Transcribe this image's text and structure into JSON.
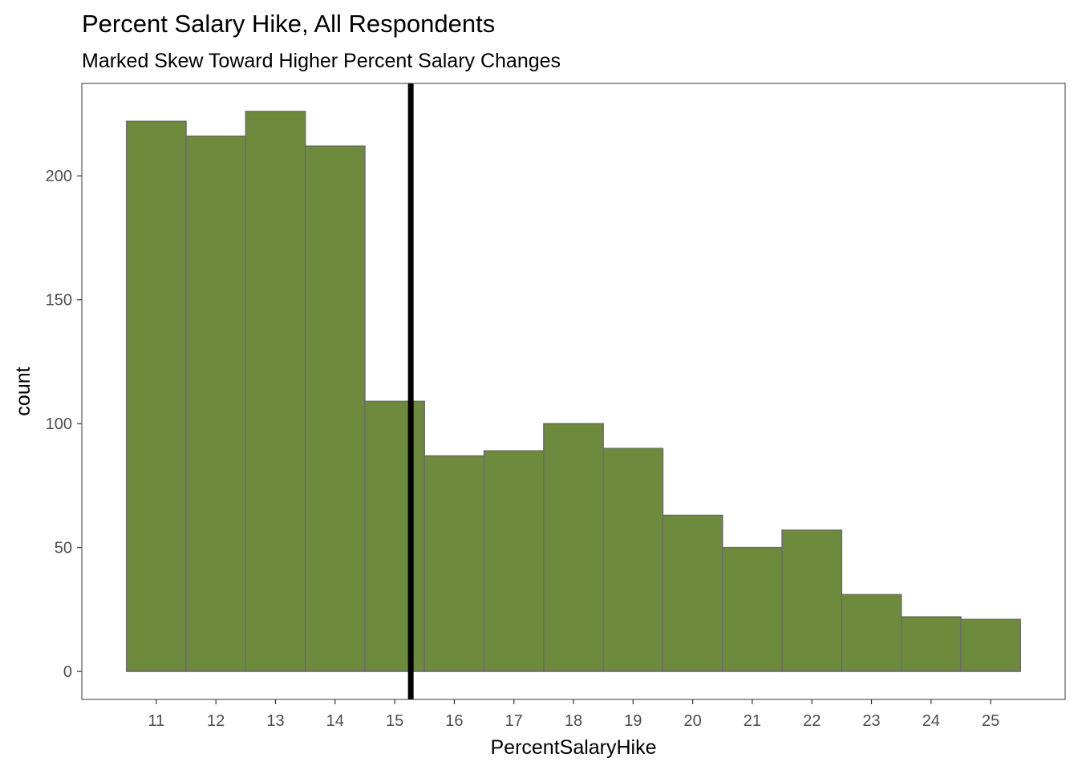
{
  "chart_data": {
    "type": "bar",
    "title": "Percent Salary Hike, All Respondents",
    "subtitle": "Marked Skew Toward Higher Percent Salary Changes",
    "xlabel": "PercentSalaryHike",
    "ylabel": "count",
    "categories": [
      "11",
      "12",
      "13",
      "14",
      "15",
      "16",
      "17",
      "18",
      "19",
      "20",
      "21",
      "22",
      "23",
      "24",
      "25"
    ],
    "x": [
      11,
      12,
      13,
      14,
      15,
      16,
      17,
      18,
      19,
      20,
      21,
      22,
      23,
      24,
      25
    ],
    "values": [
      222,
      216,
      226,
      212,
      109,
      87,
      89,
      100,
      90,
      63,
      50,
      57,
      31,
      22,
      21
    ],
    "y_ticks": [
      0,
      50,
      100,
      150,
      200
    ],
    "y_tick_labels": [
      "0",
      "50",
      "100",
      "150",
      "200"
    ],
    "xlim": [
      9.75,
      26.25
    ],
    "ylim": [
      -11.3,
      237.3
    ],
    "reference_line_x": 15.27,
    "bar_fill": "#6e8b3d",
    "bar_outline": "#6b6b6b",
    "reference_line_color": "#000000",
    "grid": false,
    "legend": "none"
  }
}
